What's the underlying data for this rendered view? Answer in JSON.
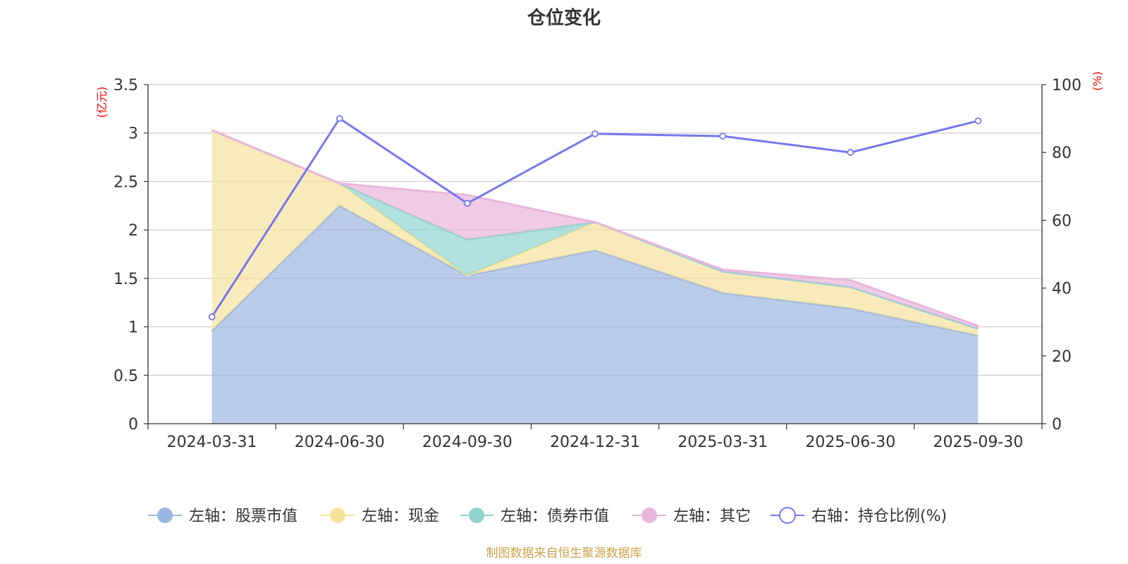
{
  "chart_data": {
    "type": "area",
    "title": "仓位变化",
    "categories": [
      "2024-03-31",
      "2024-06-30",
      "2024-09-30",
      "2024-12-31",
      "2025-03-31",
      "2025-06-30",
      "2025-09-30"
    ],
    "left_axis": {
      "unit": "(亿元)",
      "ylim": [
        0,
        3.5
      ],
      "ticks": [
        "0",
        "0.5",
        "1",
        "1.5",
        "2",
        "2.5",
        "3",
        "3.5"
      ]
    },
    "right_axis": {
      "unit": "(%)",
      "ylim": [
        0,
        100
      ],
      "ticks": [
        "0",
        "20",
        "40",
        "60",
        "80",
        "100"
      ]
    },
    "stacked_series": [
      {
        "name": "左轴：股票市值",
        "color": "#9bb6e0",
        "values": [
          0.96,
          2.25,
          1.53,
          1.79,
          1.35,
          1.19,
          0.91
        ]
      },
      {
        "name": "左轴：现金",
        "color": "#f6e39b",
        "values": [
          2.07,
          0.23,
          0.0,
          0.29,
          0.22,
          0.22,
          0.07
        ]
      },
      {
        "name": "左轴：债券市值",
        "color": "#8ed4d0",
        "values": [
          0.0,
          0.0,
          0.37,
          0.0,
          0.0,
          0.0,
          0.0
        ]
      },
      {
        "name": "左轴：其它",
        "color": "#e8b5db",
        "values": [
          0.0,
          0.0,
          0.46,
          0.0,
          0.02,
          0.07,
          0.03
        ]
      }
    ],
    "line_series": {
      "name": "右轴：持仓比例(%)",
      "color": "#7479ee",
      "values": [
        31.5,
        90.0,
        65.0,
        85.5,
        84.8,
        80.0,
        89.3
      ]
    },
    "legend_position": "bottom",
    "grid": true
  },
  "footer": {
    "source": "制图数据来自恒生聚源数据库",
    "color": "#c8a24a"
  }
}
